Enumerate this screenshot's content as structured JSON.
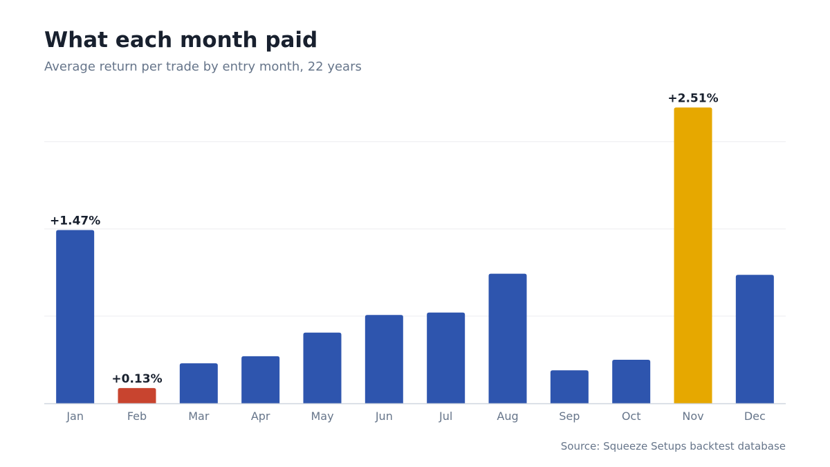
{
  "title": "What each month paid",
  "subtitle": "Average return per trade by entry month, 22 years",
  "source": "Source: Squeeze Setups backtest database",
  "chart_data": {
    "type": "bar",
    "title": "What each month paid",
    "subtitle": "Average return per trade by entry month, 22 years",
    "xlabel": "",
    "ylabel": "",
    "categories": [
      "Jan",
      "Feb",
      "Mar",
      "Apr",
      "May",
      "Jun",
      "Jul",
      "Aug",
      "Sep",
      "Oct",
      "Nov",
      "Dec"
    ],
    "values": [
      1.47,
      0.13,
      0.34,
      0.4,
      0.6,
      0.75,
      0.77,
      1.1,
      0.28,
      0.37,
      2.51,
      1.09
    ],
    "data_labels": [
      {
        "category": "Jan",
        "text": "+1.47%"
      },
      {
        "category": "Feb",
        "text": "+0.13%"
      },
      {
        "category": "Nov",
        "text": "+2.51%"
      }
    ],
    "ylim": [
      0,
      2.6
    ],
    "gridlines": [
      0.74,
      1.48,
      2.22
    ],
    "grid": true,
    "y_tick_labels_shown": false,
    "legend": "none",
    "colors": {
      "default": "#2e55ae",
      "lowest": "#c8442f",
      "highest": "#e6a800",
      "grid": "#ececef",
      "axis": "#cfd6df"
    },
    "highlight": {
      "lowest": "Feb",
      "highest": "Nov"
    }
  }
}
